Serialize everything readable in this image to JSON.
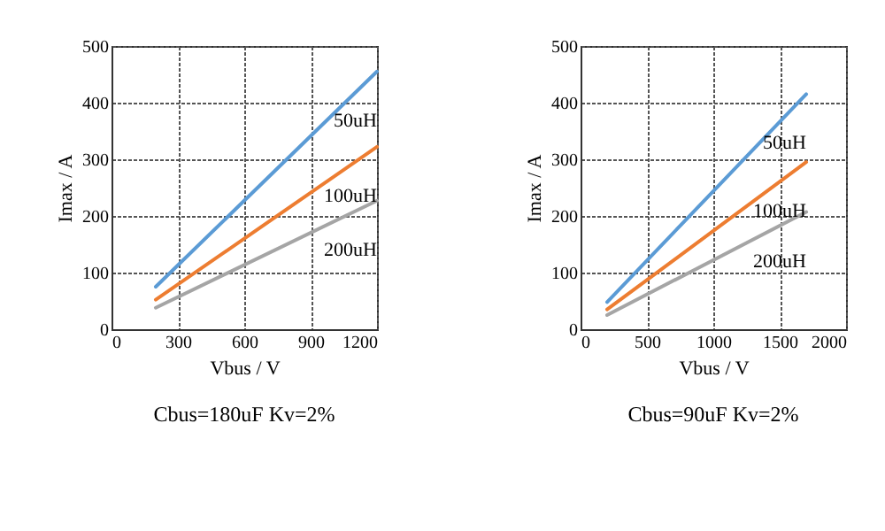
{
  "chart_data": [
    {
      "type": "line",
      "xlabel": "Vbus / V",
      "ylabel": "Imax / A",
      "xlim": [
        0,
        1200
      ],
      "xticks": [
        0,
        300,
        600,
        900,
        1200
      ],
      "ylim": [
        0,
        500
      ],
      "yticks": [
        0,
        100,
        200,
        300,
        400,
        500
      ],
      "grid": true,
      "legend": false,
      "marker": "none",
      "annotations": [
        "Cbus=180uF Kv=2%"
      ],
      "series": [
        {
          "name": "50uH",
          "color": "#5b9bd5",
          "x": [
            200,
            1200
          ],
          "values": [
            75,
            455
          ]
        },
        {
          "name": "100uH",
          "color": "#ed7d31",
          "x": [
            200,
            1200
          ],
          "values": [
            52,
            322
          ]
        },
        {
          "name": "200uH",
          "color": "#a5a5a5",
          "x": [
            200,
            1200
          ],
          "values": [
            38,
            227
          ]
        }
      ]
    },
    {
      "type": "line",
      "xlabel": "Vbus / V",
      "ylabel": "Imax / A",
      "xlim": [
        0,
        2000
      ],
      "xticks": [
        0,
        500,
        1000,
        1500,
        2000
      ],
      "ylim": [
        0,
        500
      ],
      "yticks": [
        0,
        100,
        200,
        300,
        400,
        500
      ],
      "grid": true,
      "legend": false,
      "marker": "none",
      "annotations": [
        "Cbus=90uF Kv=2%"
      ],
      "series": [
        {
          "name": "50uH",
          "color": "#5b9bd5",
          "x": [
            200,
            1700
          ],
          "values": [
            48,
            415
          ]
        },
        {
          "name": "100uH",
          "color": "#ed7d31",
          "x": [
            200,
            1700
          ],
          "values": [
            35,
            295
          ]
        },
        {
          "name": "200uH",
          "color": "#a5a5a5",
          "x": [
            200,
            1700
          ],
          "values": [
            25,
            207
          ]
        }
      ]
    }
  ]
}
